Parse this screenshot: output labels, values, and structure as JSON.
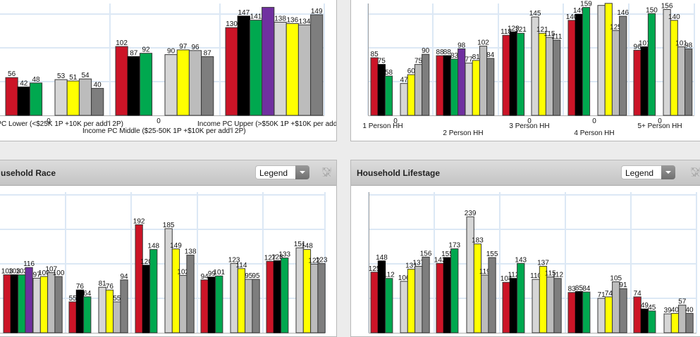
{
  "colors": {
    "red": "#cc1427",
    "black": "#000000",
    "green": "#00a84f",
    "purple": "#7030a0",
    "lightgray": "#d6d6d6",
    "yellow": "#ffff00",
    "silver": "#bcbcbc",
    "darkgray": "#7e7e7e",
    "grid": "#dce8f5"
  },
  "panels": {
    "race": {
      "title": "usehold Race",
      "legend_label": "Legend",
      "expand_icon": "expand-arrows-icon",
      "dropdown_icon": "chevron-down-icon"
    },
    "lifestage": {
      "title": "Household Lifestage",
      "legend_label": "Legend",
      "expand_icon": "expand-arrows-icon",
      "dropdown_icon": "chevron-down-icon"
    }
  },
  "chart_data": [
    {
      "type": "bar",
      "name": "income",
      "title": "",
      "zero_label": "0",
      "groups": [
        {
          "category": "e PC Lower (<$25K 1P +10K per add'l 2P)",
          "zero_label": "0",
          "left": [
            {
              "color": "red",
              "value": 56
            },
            {
              "color": "black",
              "value": 42
            },
            {
              "color": "green",
              "value": 48
            }
          ],
          "right": [
            {
              "color": "lightgray",
              "value": 53
            },
            {
              "color": "yellow",
              "value": 51
            },
            {
              "color": "silver",
              "value": 54
            },
            {
              "color": "darkgray",
              "value": 40
            }
          ]
        },
        {
          "category": "Income PC Middle ($25-50K 1P +$10K per add'l 2P)",
          "zero_label": "0",
          "left": [
            {
              "color": "red",
              "value": 102
            },
            {
              "color": "black",
              "value": 87
            },
            {
              "color": "green",
              "value": 92
            }
          ],
          "right": [
            {
              "color": "lightgray",
              "value": 90
            },
            {
              "color": "yellow",
              "value": 97
            },
            {
              "color": "silver",
              "value": 96
            },
            {
              "color": "darkgray",
              "value": 87
            }
          ]
        },
        {
          "category": "Income PC Upper (>$50K 1P +$10K per add'l 2P)",
          "zero_label": "",
          "left": [
            {
              "color": "red",
              "value": 130
            },
            {
              "color": "black",
              "value": 147
            },
            {
              "color": "green",
              "value": 141
            },
            {
              "color": "purple",
              "value": 160,
              "label": ""
            }
          ],
          "right": [
            {
              "color": "lightgray",
              "value": 138
            },
            {
              "color": "yellow",
              "value": 136
            },
            {
              "color": "silver",
              "value": 134
            },
            {
              "color": "darkgray",
              "value": 149
            }
          ]
        }
      ]
    },
    {
      "type": "bar",
      "name": "household-size",
      "title": "",
      "groups": [
        {
          "category": "1 Person HH",
          "zero_label": "0",
          "left": [
            {
              "color": "red",
              "value": 85
            },
            {
              "color": "black",
              "value": 75
            },
            {
              "color": "green",
              "value": 58
            }
          ],
          "right": [
            {
              "color": "lightgray",
              "value": 47
            },
            {
              "color": "yellow",
              "value": 60
            },
            {
              "color": "silver",
              "value": 75
            },
            {
              "color": "darkgray",
              "value": 90
            }
          ]
        },
        {
          "category": "2 Person HH",
          "zero_label": "",
          "left": [
            {
              "color": "red",
              "value": 88
            },
            {
              "color": "black",
              "value": 88
            },
            {
              "color": "green",
              "value": 83
            },
            {
              "color": "purple",
              "value": 98
            }
          ],
          "right": [
            {
              "color": "lightgray",
              "value": 77
            },
            {
              "color": "yellow",
              "value": 81
            },
            {
              "color": "silver",
              "value": 102
            },
            {
              "color": "darkgray",
              "value": 84
            }
          ]
        },
        {
          "category": "3 Person HH",
          "zero_label": "0",
          "left": [
            {
              "color": "red",
              "value": 118
            },
            {
              "color": "black",
              "value": 123
            },
            {
              "color": "green",
              "value": 121
            }
          ],
          "right": [
            {
              "color": "lightgray",
              "value": 145
            },
            {
              "color": "yellow",
              "value": 121
            },
            {
              "color": "silver",
              "value": 115
            },
            {
              "color": "darkgray",
              "value": 111
            }
          ]
        },
        {
          "category": "4 Person HH",
          "zero_label": "0",
          "left": [
            {
              "color": "red",
              "value": 140
            },
            {
              "color": "black",
              "value": 149
            },
            {
              "color": "green",
              "value": 159
            }
          ],
          "right": [
            {
              "color": "lightgray",
              "value": 162,
              "label": ""
            },
            {
              "color": "yellow",
              "value": 165,
              "label": ""
            },
            {
              "color": "silver",
              "value": 125
            },
            {
              "color": "darkgray",
              "value": 146
            }
          ]
        },
        {
          "category": "5+ Person HH",
          "zero_label": "0",
          "left": [
            {
              "color": "red",
              "value": 96
            },
            {
              "color": "black",
              "value": 101
            },
            {
              "color": "green",
              "value": 150
            }
          ],
          "right": [
            {
              "color": "lightgray",
              "value": 156
            },
            {
              "color": "yellow",
              "value": 140
            },
            {
              "color": "silver",
              "value": 101
            },
            {
              "color": "darkgray",
              "value": 98
            }
          ]
        }
      ]
    },
    {
      "type": "bar",
      "name": "household-race",
      "title": "usehold Race",
      "groups": [
        {
          "category": "",
          "zero_label": "",
          "left": [
            {
              "color": "red",
              "value": 103
            },
            {
              "color": "black",
              "value": 103
            },
            {
              "color": "green",
              "value": 103
            },
            {
              "color": "purple",
              "value": 116
            }
          ],
          "right": [
            {
              "color": "lightgray",
              "value": 97
            },
            {
              "color": "yellow",
              "value": 100
            },
            {
              "color": "silver",
              "value": 107
            },
            {
              "color": "darkgray",
              "value": 100
            }
          ]
        },
        {
          "category": "",
          "zero_label": "",
          "left": [
            {
              "color": "red",
              "value": 55
            },
            {
              "color": "black",
              "value": 76
            },
            {
              "color": "green",
              "value": 64
            }
          ],
          "right": [
            {
              "color": "lightgray",
              "value": 81
            },
            {
              "color": "yellow",
              "value": 76
            },
            {
              "color": "silver",
              "value": 55
            },
            {
              "color": "darkgray",
              "value": 94
            }
          ]
        },
        {
          "category": "",
          "zero_label": "",
          "left": [
            {
              "color": "red",
              "value": 192
            },
            {
              "color": "black",
              "value": 120
            },
            {
              "color": "green",
              "value": 148
            }
          ],
          "right": [
            {
              "color": "lightgray",
              "value": 185
            },
            {
              "color": "yellow",
              "value": 149
            },
            {
              "color": "silver",
              "value": 102
            },
            {
              "color": "darkgray",
              "value": 138
            }
          ]
        },
        {
          "category": "",
          "zero_label": "",
          "left": [
            {
              "color": "red",
              "value": 94
            },
            {
              "color": "black",
              "value": 99
            },
            {
              "color": "green",
              "value": 101
            }
          ],
          "right": [
            {
              "color": "lightgray",
              "value": 123
            },
            {
              "color": "yellow",
              "value": 114
            },
            {
              "color": "silver",
              "value": 95
            },
            {
              "color": "darkgray",
              "value": 95
            }
          ]
        },
        {
          "category": "",
          "zero_label": "",
          "left": [
            {
              "color": "red",
              "value": 127
            },
            {
              "color": "black",
              "value": 128
            },
            {
              "color": "green",
              "value": 133
            }
          ],
          "right": [
            {
              "color": "lightgray",
              "value": 151
            },
            {
              "color": "yellow",
              "value": 148
            },
            {
              "color": "silver",
              "value": 122
            },
            {
              "color": "darkgray",
              "value": 123
            }
          ]
        }
      ]
    },
    {
      "type": "bar",
      "name": "household-lifestage",
      "title": "Household Lifestage",
      "groups": [
        {
          "category": "",
          "zero_label": "",
          "left": [
            {
              "color": "red",
              "value": 125
            },
            {
              "color": "black",
              "value": 148
            },
            {
              "color": "green",
              "value": 112
            }
          ],
          "right": [
            {
              "color": "lightgray",
              "value": 106
            },
            {
              "color": "yellow",
              "value": 131
            },
            {
              "color": "silver",
              "value": 137
            },
            {
              "color": "darkgray",
              "value": 156
            }
          ]
        },
        {
          "category": "",
          "zero_label": "",
          "left": [
            {
              "color": "red",
              "value": 143
            },
            {
              "color": "black",
              "value": 155
            },
            {
              "color": "green",
              "value": 173
            }
          ],
          "right": [
            {
              "color": "lightgray",
              "value": 239
            },
            {
              "color": "yellow",
              "value": 183
            },
            {
              "color": "silver",
              "value": 119
            },
            {
              "color": "darkgray",
              "value": 155
            }
          ]
        },
        {
          "category": "",
          "zero_label": "",
          "left": [
            {
              "color": "red",
              "value": 104
            },
            {
              "color": "black",
              "value": 112
            },
            {
              "color": "green",
              "value": 143
            }
          ],
          "right": [
            {
              "color": "lightgray",
              "value": 110
            },
            {
              "color": "yellow",
              "value": 137
            },
            {
              "color": "silver",
              "value": 115
            },
            {
              "color": "darkgray",
              "value": 112
            }
          ]
        },
        {
          "category": "",
          "zero_label": "",
          "left": [
            {
              "color": "red",
              "value": 83
            },
            {
              "color": "black",
              "value": 85
            },
            {
              "color": "green",
              "value": 84
            }
          ],
          "right": [
            {
              "color": "lightgray",
              "value": 71
            },
            {
              "color": "yellow",
              "value": 74
            },
            {
              "color": "silver",
              "value": 105
            },
            {
              "color": "darkgray",
              "value": 91
            }
          ]
        },
        {
          "category": "",
          "zero_label": "",
          "left": [
            {
              "color": "red",
              "value": 74
            },
            {
              "color": "black",
              "value": 49
            },
            {
              "color": "green",
              "value": 45
            }
          ],
          "right": [
            {
              "color": "lightgray",
              "value": 39
            },
            {
              "color": "yellow",
              "value": 40
            },
            {
              "color": "silver",
              "value": 57
            },
            {
              "color": "darkgray",
              "value": 40
            }
          ]
        }
      ]
    }
  ]
}
